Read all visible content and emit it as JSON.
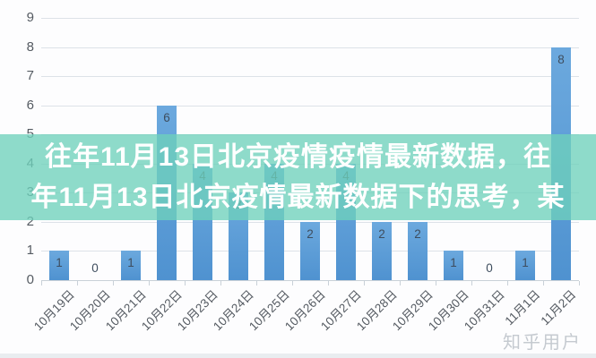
{
  "overlay": {
    "title_line1": "往年11月13日北京疫情疫情最新数据，往",
    "title_line2": "年11月13日北京疫情最新数据下的思考，某",
    "background_rgba": "rgba(110, 209, 187, 0.78)",
    "text_color": "#ffffff"
  },
  "watermark": {
    "text": "知乎用户",
    "color": "#c5cad0"
  },
  "chart_data": {
    "type": "bar",
    "categories": [
      "10月19日",
      "10月20日",
      "10月21日",
      "10月22日",
      "10月23日",
      "10月24日",
      "10月25日",
      "10月26日",
      "10月27日",
      "10月28日",
      "10月29日",
      "10月30日",
      "10月31日",
      "11月1日",
      "11月2日"
    ],
    "values": [
      1,
      0,
      1,
      6,
      4,
      3,
      4,
      2,
      4,
      2,
      2,
      1,
      0,
      1,
      8
    ],
    "title": "",
    "xlabel": "",
    "ylabel": "",
    "ylim": [
      0,
      9
    ],
    "yticks": [
      0,
      1,
      2,
      3,
      4,
      5,
      6,
      7,
      8,
      9
    ],
    "grid": true,
    "legend": false,
    "value_labels_shown": true,
    "bar_color": "#4f92d0",
    "bar_color_light": "#6ca9de",
    "value_label_color": "#3e4d5e",
    "axis_label_color": "#555b62",
    "gridline_color": "#dde2e8",
    "axis_line_color": "#c9d1d8"
  }
}
